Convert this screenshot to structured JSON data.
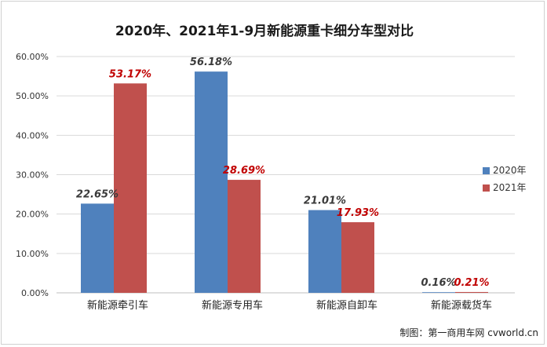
{
  "chart_data": {
    "type": "bar",
    "title": "2020年、2021年1-9月新能源重卡细分车型对比",
    "categories": [
      "新能源牵引车",
      "新能源专用车",
      "新能源自卸车",
      "新能源载货车"
    ],
    "series": [
      {
        "name": "2020年",
        "values": [
          22.65,
          56.18,
          21.01,
          0.16
        ],
        "labels": [
          "22.65%",
          "56.18%",
          "21.01%",
          "0.16%"
        ],
        "color": "#4f81bd",
        "label_color": "#3a3a3a"
      },
      {
        "name": "2021年",
        "values": [
          53.17,
          28.69,
          17.93,
          0.21
        ],
        "labels": [
          "53.17%",
          "28.69%",
          "17.93%",
          "0.21%"
        ],
        "color": "#c0504d",
        "label_color": "#c00000"
      }
    ],
    "yticks": [
      "0.00%",
      "10.00%",
      "20.00%",
      "30.00%",
      "40.00%",
      "50.00%",
      "60.00%"
    ],
    "ylim": [
      0,
      60
    ],
    "grid": true,
    "legend_position": "right",
    "credit": "制图：第一商用车网 cvworld.cn"
  }
}
